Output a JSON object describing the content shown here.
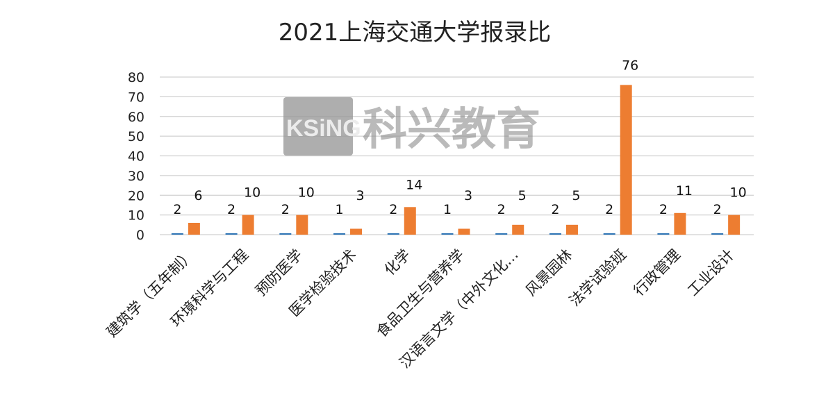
{
  "chart_data": {
    "type": "bar",
    "title": "2021上海交通大学报录比",
    "xlabel": "",
    "ylabel": "",
    "ylim": [
      0,
      80
    ],
    "yticks": [
      0,
      10,
      20,
      30,
      40,
      50,
      60,
      70,
      80
    ],
    "grid": true,
    "legend": "none",
    "categories": [
      "建筑学（五年制）",
      "环境科学与工程",
      "预防医学",
      "医学检验技术",
      "化学",
      "食品卫生与营养学",
      "汉语言文学（中外文化…",
      "风景园林",
      "法学试验班",
      "行政管理",
      "工业设计"
    ],
    "series": [
      {
        "values": [
          2,
          2,
          2,
          1,
          2,
          1,
          2,
          2,
          2,
          2,
          2
        ],
        "color": "#2e75b6"
      },
      {
        "values": [
          6,
          10,
          10,
          3,
          14,
          3,
          5,
          5,
          76,
          11,
          10
        ],
        "color": "#ed7d31"
      }
    ]
  },
  "watermark": {
    "logo_text": "KSiNG",
    "text": "科兴教育"
  }
}
